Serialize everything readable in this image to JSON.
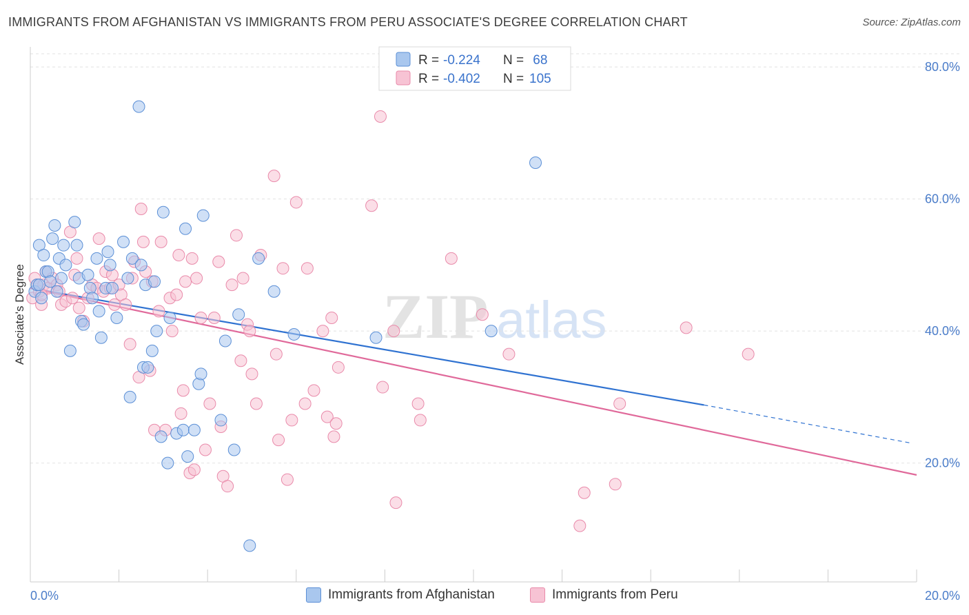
{
  "title": "IMMIGRANTS FROM AFGHANISTAN VS IMMIGRANTS FROM PERU ASSOCIATE'S DEGREE CORRELATION CHART",
  "source": "Source: ZipAtlas.com",
  "watermark": {
    "zip": "ZIP",
    "atlas": "atlas"
  },
  "legend": {
    "rows": [
      {
        "r_label": "R = ",
        "r_value": "-0.224",
        "n_label": "N = ",
        "n_value": " 68",
        "color": "#7ba7e0"
      },
      {
        "r_label": "R = ",
        "r_value": "-0.402",
        "n_label": "N = ",
        "n_value": "105",
        "color": "#f0a0bc"
      }
    ]
  },
  "bottom_legend": {
    "afghanistan": "Immigrants from Afghanistan",
    "peru": "Immigrants from Peru"
  },
  "colors": {
    "afghanistan_fill": "#a9c7ee",
    "afghanistan_stroke": "#5b8fd6",
    "afghanistan_line": "#2f72d1",
    "peru_fill": "#f7c3d4",
    "peru_stroke": "#e98aaa",
    "peru_line": "#e0699a",
    "tick_label": "#4a7cc9"
  },
  "chart_data": {
    "type": "scatter",
    "title": "IMMIGRANTS FROM AFGHANISTAN VS IMMIGRANTS FROM PERU ASSOCIATE'S DEGREE CORRELATION CHART",
    "xlabel": "",
    "ylabel": "Associate's Degree",
    "xlim": [
      0,
      20
    ],
    "ylim": [
      2,
      82
    ],
    "x_tick_labels": [
      "0.0%",
      "20.0%"
    ],
    "y_ticks": [
      20,
      40,
      60,
      80
    ],
    "y_tick_labels": [
      "20.0%",
      "40.0%",
      "60.0%",
      "80.0%"
    ],
    "grid": true,
    "legend_position": "top-center",
    "series": [
      {
        "name": "Immigrants from Afghanistan",
        "r": -0.224,
        "n": 68,
        "trend": {
          "x0": 0,
          "y0": 46.5,
          "x1": 15.2,
          "y1": 28.8,
          "dash_to_x": 19.9,
          "dash_to_y": 23.0
        },
        "points": [
          [
            0.1,
            46
          ],
          [
            0.15,
            47
          ],
          [
            0.2,
            53
          ],
          [
            0.25,
            45
          ],
          [
            0.3,
            51.5
          ],
          [
            0.35,
            49
          ],
          [
            0.4,
            49
          ],
          [
            0.5,
            54
          ],
          [
            0.55,
            56
          ],
          [
            0.65,
            51
          ],
          [
            0.7,
            48
          ],
          [
            0.75,
            53
          ],
          [
            0.8,
            50
          ],
          [
            0.9,
            37
          ],
          [
            1.0,
            56.5
          ],
          [
            1.05,
            53
          ],
          [
            1.1,
            48
          ],
          [
            1.15,
            41.5
          ],
          [
            1.2,
            41
          ],
          [
            1.3,
            48.5
          ],
          [
            1.35,
            46.5
          ],
          [
            1.5,
            51
          ],
          [
            1.55,
            43
          ],
          [
            1.6,
            39
          ],
          [
            1.7,
            46.5
          ],
          [
            1.75,
            52
          ],
          [
            1.8,
            50
          ],
          [
            1.85,
            46.5
          ],
          [
            1.95,
            42
          ],
          [
            2.1,
            53.5
          ],
          [
            2.2,
            48
          ],
          [
            2.25,
            30
          ],
          [
            2.3,
            51
          ],
          [
            2.45,
            74
          ],
          [
            2.5,
            50
          ],
          [
            2.55,
            34.5
          ],
          [
            2.6,
            47
          ],
          [
            2.65,
            34.5
          ],
          [
            2.75,
            37
          ],
          [
            2.8,
            47.5
          ],
          [
            2.85,
            40
          ],
          [
            2.95,
            24
          ],
          [
            3.0,
            58
          ],
          [
            3.1,
            20
          ],
          [
            3.15,
            42
          ],
          [
            3.3,
            24.5
          ],
          [
            3.45,
            25
          ],
          [
            3.5,
            55.5
          ],
          [
            3.55,
            21
          ],
          [
            3.7,
            25
          ],
          [
            3.8,
            32
          ],
          [
            3.85,
            33.5
          ],
          [
            3.9,
            57.5
          ],
          [
            4.3,
            26.5
          ],
          [
            4.4,
            38.5
          ],
          [
            4.6,
            22
          ],
          [
            4.7,
            42.5
          ],
          [
            4.95,
            7.5
          ],
          [
            5.15,
            51
          ],
          [
            5.5,
            46
          ],
          [
            5.95,
            39.5
          ],
          [
            7.8,
            39
          ],
          [
            10.4,
            40
          ],
          [
            11.4,
            65.5
          ],
          [
            0.6,
            46
          ],
          [
            0.45,
            47.5
          ],
          [
            0.2,
            47
          ],
          [
            1.4,
            45
          ]
        ]
      },
      {
        "name": "Immigrants from Peru",
        "r": -0.402,
        "n": 105,
        "trend": {
          "x0": 0,
          "y0": 46.5,
          "x1": 20,
          "y1": 18.2
        },
        "points": [
          [
            0.05,
            45
          ],
          [
            0.1,
            48
          ],
          [
            0.15,
            47
          ],
          [
            0.2,
            46
          ],
          [
            0.25,
            44
          ],
          [
            0.3,
            47
          ],
          [
            0.35,
            49
          ],
          [
            0.4,
            46.5
          ],
          [
            0.5,
            48
          ],
          [
            0.6,
            47
          ],
          [
            0.65,
            46
          ],
          [
            0.7,
            44
          ],
          [
            0.8,
            44.5
          ],
          [
            0.9,
            55
          ],
          [
            0.95,
            45
          ],
          [
            1.0,
            48.5
          ],
          [
            1.05,
            51
          ],
          [
            1.1,
            43.5
          ],
          [
            1.2,
            41.5
          ],
          [
            1.3,
            45
          ],
          [
            1.4,
            47
          ],
          [
            1.5,
            46.5
          ],
          [
            1.55,
            54
          ],
          [
            1.65,
            46
          ],
          [
            1.7,
            49
          ],
          [
            1.8,
            46.5
          ],
          [
            1.85,
            48.5
          ],
          [
            1.9,
            44
          ],
          [
            2.0,
            47
          ],
          [
            2.05,
            45.5
          ],
          [
            2.15,
            44
          ],
          [
            2.25,
            38
          ],
          [
            2.3,
            48
          ],
          [
            2.35,
            50.5
          ],
          [
            2.45,
            33
          ],
          [
            2.5,
            58.5
          ],
          [
            2.55,
            53.5
          ],
          [
            2.6,
            49
          ],
          [
            2.7,
            34
          ],
          [
            2.75,
            47.5
          ],
          [
            2.8,
            25
          ],
          [
            2.9,
            43
          ],
          [
            2.95,
            53.5
          ],
          [
            3.05,
            25
          ],
          [
            3.15,
            45
          ],
          [
            3.2,
            40
          ],
          [
            3.3,
            45.5
          ],
          [
            3.35,
            51.5
          ],
          [
            3.4,
            27.5
          ],
          [
            3.45,
            31
          ],
          [
            3.5,
            47.5
          ],
          [
            3.6,
            18.5
          ],
          [
            3.65,
            51
          ],
          [
            3.7,
            19
          ],
          [
            3.75,
            48
          ],
          [
            3.85,
            42
          ],
          [
            3.95,
            22
          ],
          [
            4.05,
            29
          ],
          [
            4.15,
            42
          ],
          [
            4.25,
            50.5
          ],
          [
            4.3,
            25.5
          ],
          [
            4.35,
            18
          ],
          [
            4.45,
            16.5
          ],
          [
            4.55,
            47
          ],
          [
            4.65,
            54.5
          ],
          [
            4.75,
            35.5
          ],
          [
            4.8,
            48
          ],
          [
            4.9,
            41
          ],
          [
            4.95,
            40
          ],
          [
            5.0,
            33.5
          ],
          [
            5.1,
            29
          ],
          [
            5.2,
            51.5
          ],
          [
            5.5,
            63.5
          ],
          [
            5.55,
            36.5
          ],
          [
            5.6,
            23.5
          ],
          [
            5.7,
            49.5
          ],
          [
            5.8,
            17.5
          ],
          [
            5.9,
            26.5
          ],
          [
            6.0,
            59.5
          ],
          [
            6.2,
            29
          ],
          [
            6.25,
            49.5
          ],
          [
            6.4,
            31
          ],
          [
            6.6,
            40
          ],
          [
            6.7,
            27
          ],
          [
            6.8,
            42
          ],
          [
            6.85,
            24
          ],
          [
            6.9,
            26
          ],
          [
            6.95,
            34.5
          ],
          [
            7.7,
            59
          ],
          [
            7.9,
            72.5
          ],
          [
            7.95,
            31.5
          ],
          [
            8.2,
            40
          ],
          [
            8.25,
            14
          ],
          [
            8.75,
            29
          ],
          [
            8.8,
            26.5
          ],
          [
            9.5,
            51
          ],
          [
            10.2,
            42.5
          ],
          [
            10.8,
            36.5
          ],
          [
            12.4,
            10.5
          ],
          [
            12.5,
            15.5
          ],
          [
            13.2,
            16.8
          ],
          [
            13.3,
            29
          ],
          [
            14.8,
            40.5
          ],
          [
            16.2,
            36.5
          ],
          [
            0.25,
            45.5
          ]
        ]
      }
    ]
  }
}
